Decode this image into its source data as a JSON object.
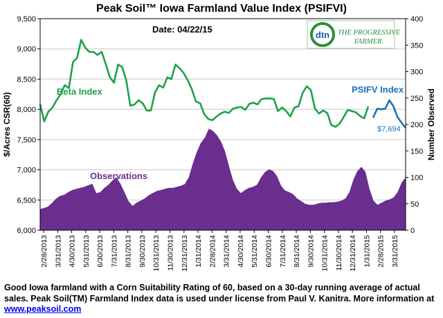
{
  "chart_data": {
    "type": "line+area",
    "title": "Peak Soil™ Iowa Farmland Value Index (PSIFVI)",
    "date_label": "Date: 04/22/15",
    "ylabel_left": "$/Acres CSR(60)",
    "ylabel_right": "Number Observed",
    "ylim_left": [
      6000,
      9500
    ],
    "ylim_right": [
      0,
      400
    ],
    "yticks_left": [
      "6,000",
      "6,500",
      "7,000",
      "7,500",
      "8,000",
      "8,500",
      "9,000",
      "9,500"
    ],
    "yticks_right": [
      "0",
      "50",
      "100",
      "150",
      "200",
      "250",
      "300",
      "350",
      "400"
    ],
    "x_tick_labels": [
      "2/28/2013",
      "3/31/2013",
      "4/30/2013",
      "5/31/2013",
      "6/30/2013",
      "7/31/2013",
      "8/31/2013",
      "9/30/2013",
      "10/31/2013",
      "11/30/2013",
      "12/31/2013",
      "1/31/2014",
      "2/28/2014",
      "3/31/2014",
      "4/30/2014",
      "5/31/2014",
      "6/30/2014",
      "7/31/2014",
      "8/31/2014",
      "9/30/2014",
      "10/31/2014",
      "11/30/2014",
      "12/31/2014",
      "1/31/2015",
      "2/28/2015",
      "3/31/2015"
    ],
    "series": [
      {
        "name": "Beta Index",
        "color": "#1aa34a",
        "axis": "left",
        "values": [
          8080,
          7800,
          7960,
          8030,
          8150,
          8250,
          8400,
          8350,
          8780,
          8850,
          9150,
          9020,
          8950,
          8950,
          8900,
          8950,
          8750,
          8530,
          8440,
          8740,
          8700,
          8480,
          8060,
          8080,
          8150,
          8100,
          7980,
          7980,
          8280,
          8400,
          8360,
          8530,
          8500,
          8740,
          8680,
          8600,
          8480,
          8330,
          8130,
          8100,
          7920,
          7840,
          7820,
          7880,
          7930,
          7960,
          7940,
          8010,
          8030,
          8040,
          7990,
          8090,
          8110,
          8080,
          8170,
          8180,
          8180,
          8170,
          7970,
          8030,
          7970,
          7880,
          8030,
          8050,
          8270,
          8380,
          8320,
          8010,
          7930,
          7980,
          7940,
          7740,
          7710,
          7760,
          7870,
          7990,
          7970,
          7950,
          7890,
          7850,
          8050
        ],
        "label": "Beta Index"
      },
      {
        "name": "PSIFV Index",
        "color": "#1c72b9",
        "axis": "left",
        "values": [
          7860,
          8010,
          8000,
          8010,
          8150,
          8050,
          7870,
          7780,
          7694
        ],
        "label": "PSIFV Index",
        "end_label": "$7,694"
      },
      {
        "name": "Observations",
        "color": "#6a2e8f",
        "axis": "right",
        "values": [
          40,
          42,
          45,
          52,
          60,
          65,
          67,
          72,
          76,
          78,
          80,
          82,
          85,
          88,
          70,
          72,
          80,
          86,
          94,
          100,
          88,
          72,
          55,
          46,
          52,
          56,
          60,
          66,
          70,
          74,
          76,
          78,
          80,
          80,
          82,
          84,
          87,
          100,
          126,
          148,
          165,
          175,
          192,
          188,
          180,
          168,
          150,
          122,
          95,
          78,
          70,
          76,
          80,
          82,
          86,
          100,
          110,
          115,
          112,
          102,
          84,
          75,
          72,
          68,
          60,
          55,
          50,
          48,
          48,
          50,
          52,
          52,
          53,
          53,
          54,
          56,
          60,
          72,
          96,
          112,
          120,
          110,
          78,
          56,
          48,
          52,
          56,
          58,
          62,
          72,
          90,
          100
        ],
        "label": "Observations"
      }
    ]
  },
  "caption": {
    "text": "Good Iowa farmland with a Corn Suitability Rating of 60, based on a 30-day running average of actual sales.  Peak Soil(TM) Farmland Index data is used under license  from Paul V. Kanitra. More information at ",
    "link": "www.peaksoil.com"
  },
  "logo": {
    "badge": "dtn",
    "line1": "THE PROGRESSIVE",
    "line2": "FARMER."
  },
  "colors": {
    "axis": "#000000",
    "grid": "#c8c8c8"
  }
}
